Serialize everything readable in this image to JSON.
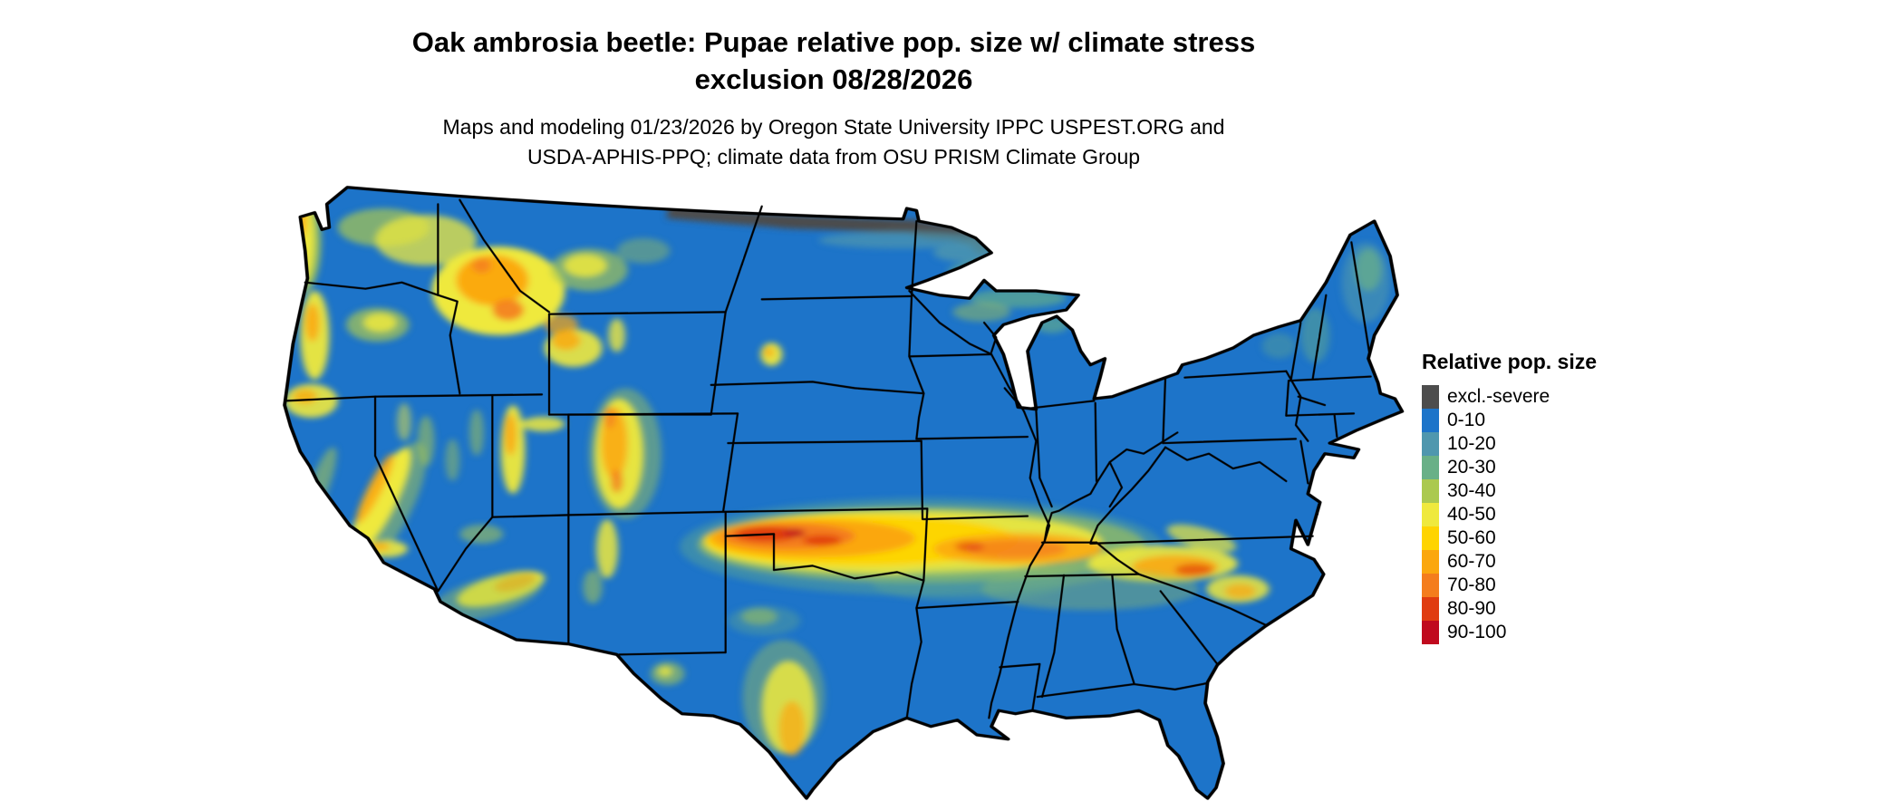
{
  "header": {
    "title_line1": "Oak ambrosia beetle: Pupae relative pop. size w/ climate stress",
    "title_line2": "exclusion 08/28/2026",
    "subtitle_line1": "Maps and modeling 01/23/2026 by Oregon State University IPPC USPEST.ORG and",
    "subtitle_line2": "USDA-APHIS-PPQ; climate data from OSU PRISM Climate Group"
  },
  "legend": {
    "title": "Relative pop. size",
    "items": [
      {
        "label": "excl.-severe",
        "color": "#4d4d4d"
      },
      {
        "label": "0-10",
        "color": "#1d74c9"
      },
      {
        "label": "10-20",
        "color": "#4f97ae"
      },
      {
        "label": "20-30",
        "color": "#69b087"
      },
      {
        "label": "30-40",
        "color": "#abc94f"
      },
      {
        "label": "40-50",
        "color": "#efe93d"
      },
      {
        "label": "50-60",
        "color": "#ffd400"
      },
      {
        "label": "60-70",
        "color": "#fba70e"
      },
      {
        "label": "70-80",
        "color": "#f47d1d"
      },
      {
        "label": "80-90",
        "color": "#e03c10"
      },
      {
        "label": "90-100",
        "color": "#c00a1e"
      }
    ]
  },
  "map": {
    "region_shown": "Contiguous United States",
    "dominant_class": "0-10",
    "border_color": "#000000",
    "background_color": "#ffffff"
  }
}
